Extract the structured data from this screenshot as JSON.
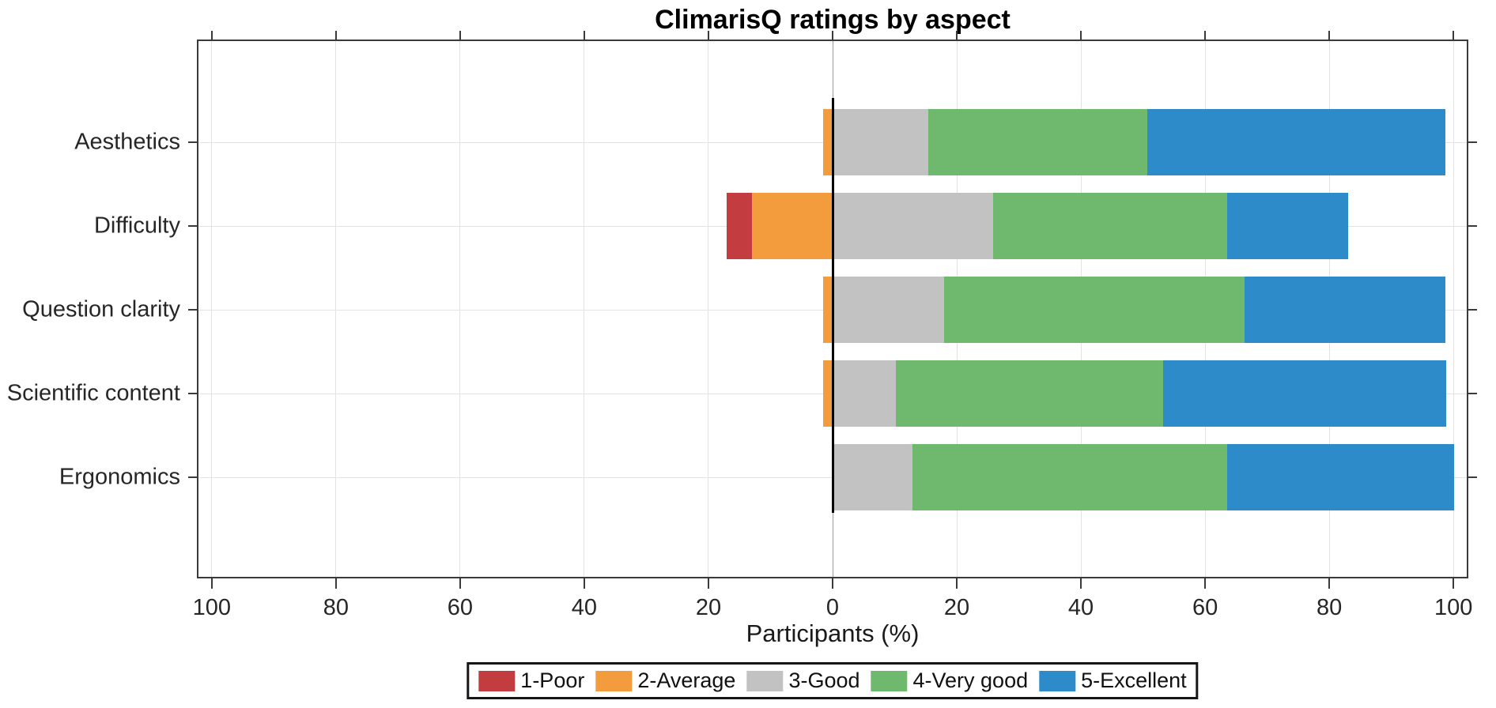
{
  "chart_data": {
    "type": "bar",
    "subtype": "diverging-stacked-horizontal-likert",
    "title": "ClimarisQ ratings by aspect",
    "xlabel": "Participants (%)",
    "ylabel": "",
    "categories": [
      "Aesthetics",
      "Difficulty",
      "Question clarity",
      "Scientific content",
      "Ergonomics"
    ],
    "series": [
      {
        "name": "1-Poor",
        "color": "#c33c3f",
        "sign": "negative",
        "values": [
          0,
          4.1,
          0,
          0,
          0
        ]
      },
      {
        "name": "2-Average",
        "color": "#f39c3e",
        "sign": "negative",
        "values": [
          1.5,
          13.0,
          1.5,
          1.5,
          0
        ]
      },
      {
        "name": "3-Good",
        "color": "#c2c2c2",
        "sign": "positive",
        "values": [
          15.4,
          25.9,
          18.0,
          10.2,
          12.9
        ]
      },
      {
        "name": "4-Very good",
        "color": "#6fb96f",
        "sign": "positive",
        "values": [
          35.3,
          37.6,
          48.4,
          43.0,
          50.6
        ]
      },
      {
        "name": "5-Excellent",
        "color": "#2d8bca",
        "sign": "positive",
        "values": [
          48.0,
          19.6,
          32.3,
          45.6,
          36.6
        ]
      }
    ],
    "x_ticks": [
      -100,
      -80,
      -60,
      -40,
      -20,
      0,
      20,
      40,
      60,
      80,
      100
    ],
    "x_tick_labels": [
      "100",
      "80",
      "60",
      "40",
      "20",
      "0",
      "20",
      "40",
      "60",
      "80",
      "100"
    ],
    "xlim": [
      -102.4,
      102.4
    ],
    "grid": true,
    "zero_line": true,
    "legend_position": "bottom",
    "colors": {
      "axis": "#3a3a3a",
      "grid": "#e3e3e3",
      "zero_grid": "#9a9a9a",
      "zero_line": "#000000",
      "text": "#262626"
    }
  }
}
